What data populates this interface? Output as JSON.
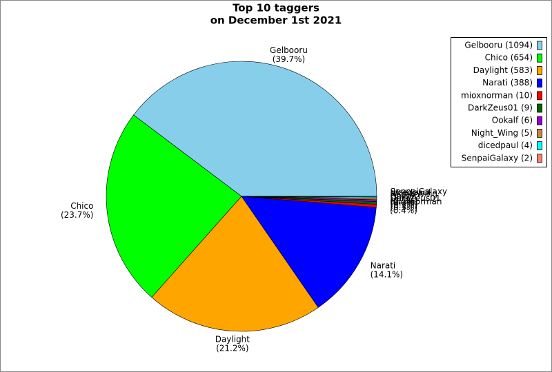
{
  "chart_data": {
    "type": "pie",
    "title_lines": [
      "Top 10 taggers",
      "on December 1st 2021"
    ],
    "categories": [
      "Gelbooru",
      "Chico",
      "Daylight",
      "Narati",
      "mioxnorman",
      "DarkZeus01",
      "Ookalf",
      "Night_Wing",
      "dicedpaul",
      "SenpaiGalaxy"
    ],
    "values": [
      1094,
      654,
      583,
      388,
      10,
      9,
      6,
      5,
      4,
      2
    ],
    "percent_labels": [
      "(39.7%)",
      "(23.7%)",
      "(21.2%)",
      "(14.1%)",
      "(0.4%)",
      "(0.3%)",
      "(0.2%)",
      "(0.2%)",
      "(0.1%)",
      "(0.1%)"
    ],
    "legend_labels": [
      "Gelbooru (1094)",
      "Chico (654)",
      "Daylight (583)",
      "Narati (388)",
      "mioxnorman (10)",
      "DarkZeus01 (9)",
      "Ookalf (6)",
      "Night_Wing (5)",
      "dicedpaul (4)",
      "SenpaiGalaxy (2)"
    ],
    "colors": [
      "#87ceeb",
      "#00ff00",
      "#ffa500",
      "#0000ff",
      "#ff0000",
      "#006400",
      "#9400d3",
      "#cd853f",
      "#00ffff",
      "#fa8072"
    ],
    "legend_position": "upper right"
  }
}
